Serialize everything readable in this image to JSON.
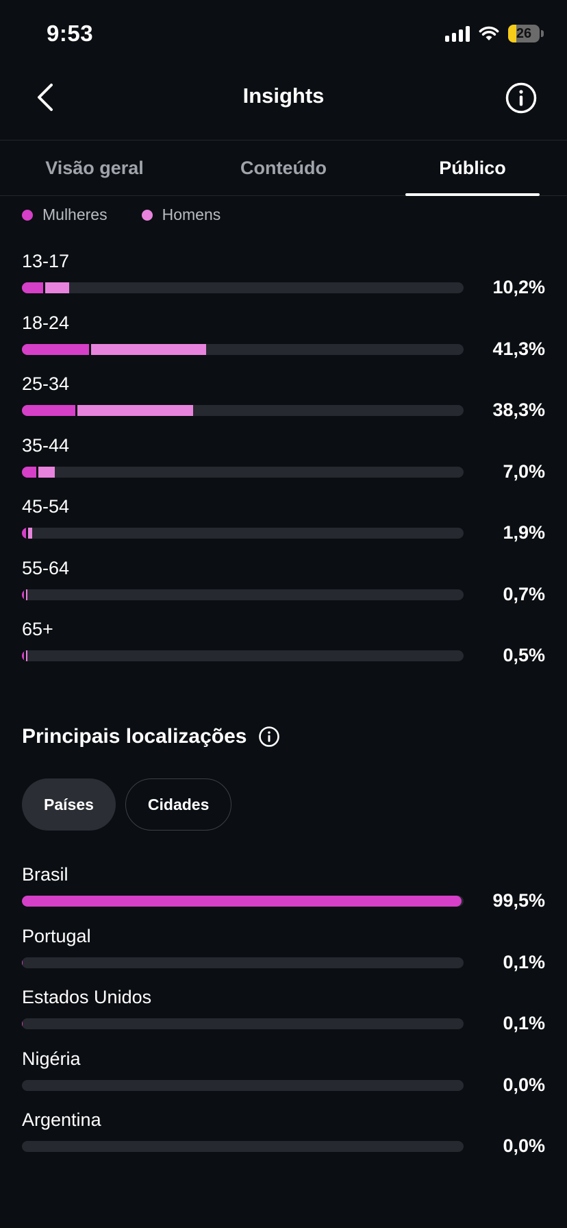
{
  "status_bar": {
    "time": "9:53",
    "battery": "26",
    "battery_level": 0.26
  },
  "header": {
    "title": "Insights"
  },
  "tabs": [
    {
      "label": "Visão geral",
      "active": false
    },
    {
      "label": "Conteúdo",
      "active": false
    },
    {
      "label": "Público",
      "active": true
    }
  ],
  "legend": [
    {
      "label": "Mulheres",
      "color": "#d63fc8"
    },
    {
      "label": "Homens",
      "color": "#e883dd"
    }
  ],
  "age_groups": [
    {
      "label": "13-17",
      "value": "10,2%",
      "total": 10.2,
      "women": 4.8,
      "men": 5.4
    },
    {
      "label": "18-24",
      "value": "41,3%",
      "total": 41.3,
      "women": 15.2,
      "men": 26.1
    },
    {
      "label": "25-34",
      "value": "38,3%",
      "total": 38.3,
      "women": 12.1,
      "men": 26.2
    },
    {
      "label": "35-44",
      "value": "7,0%",
      "total": 7.0,
      "women": 3.2,
      "men": 3.8
    },
    {
      "label": "45-54",
      "value": "1,9%",
      "total": 1.9,
      "women": 1.0,
      "men": 0.9
    },
    {
      "label": "55-64",
      "value": "0,7%",
      "total": 0.7,
      "women": 0.35,
      "men": 0.35
    },
    {
      "label": "65+",
      "value": "0,5%",
      "total": 0.5,
      "women": 0.25,
      "men": 0.25
    }
  ],
  "locations": {
    "title": "Principais localizações",
    "pills": [
      {
        "label": "Países",
        "active": true
      },
      {
        "label": "Cidades",
        "active": false
      }
    ],
    "items": [
      {
        "label": "Brasil",
        "value": "99,5%",
        "percent": 99.5
      },
      {
        "label": "Portugal",
        "value": "0,1%",
        "percent": 0.1
      },
      {
        "label": "Estados Unidos",
        "value": "0,1%",
        "percent": 0.1
      },
      {
        "label": "Nigéria",
        "value": "0,0%",
        "percent": 0.0
      },
      {
        "label": "Argentina",
        "value": "0,0%",
        "percent": 0.0
      }
    ]
  }
}
